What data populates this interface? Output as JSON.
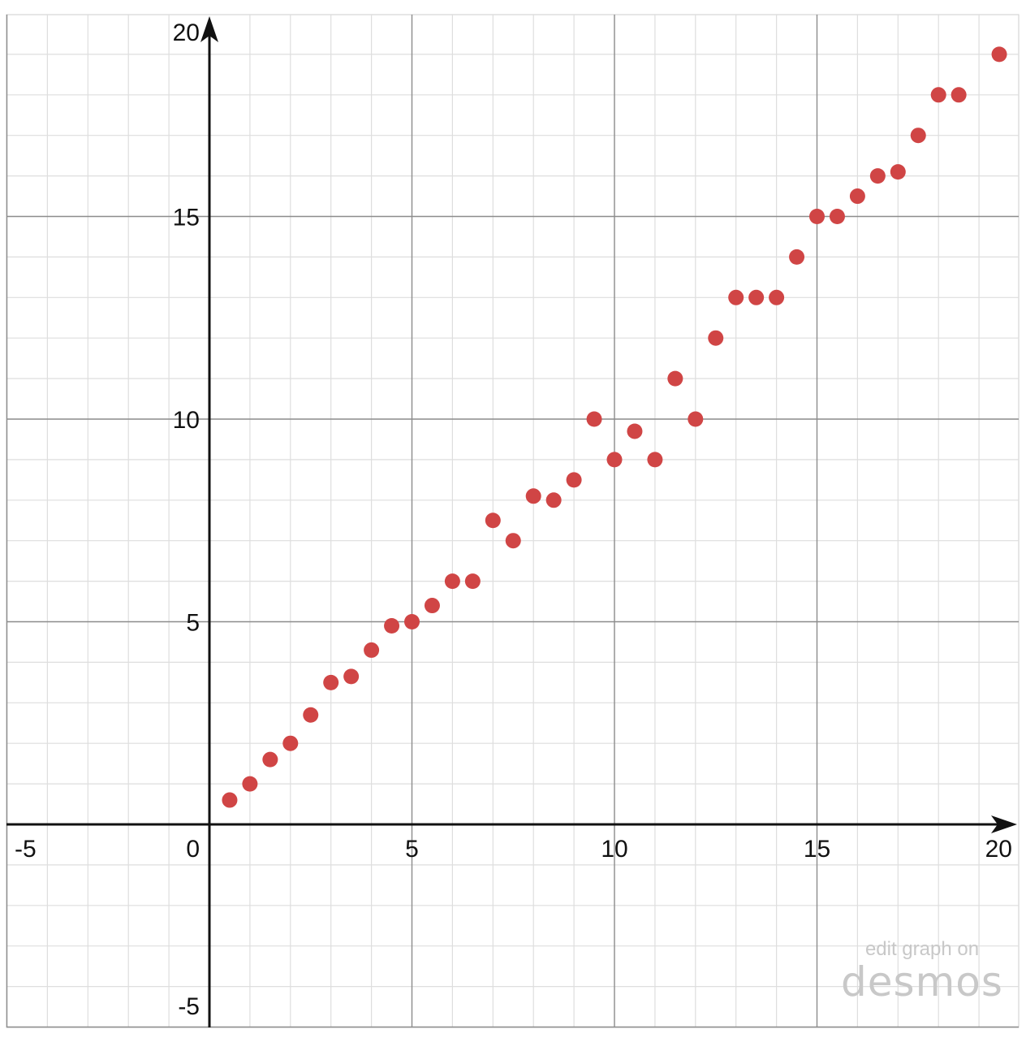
{
  "chart_data": {
    "type": "scatter",
    "title": "",
    "xlabel": "",
    "ylabel": "",
    "xlim": [
      -5,
      20
    ],
    "ylim": [
      -5,
      20
    ],
    "grid": true,
    "minor_step": 1,
    "major_step": 5,
    "point_color": "#d04545",
    "x_ticks": [
      -5,
      0,
      5,
      10,
      15,
      20
    ],
    "y_ticks": [
      -5,
      5,
      10,
      15,
      20
    ],
    "x_tick_labels": [
      "-5",
      "0",
      "5",
      "10",
      "15",
      "20"
    ],
    "y_tick_labels": [
      "-5",
      "5",
      "10",
      "15",
      "20"
    ],
    "points": [
      [
        0.5,
        0.6
      ],
      [
        1,
        1
      ],
      [
        1.5,
        1.6
      ],
      [
        2,
        2
      ],
      [
        2.5,
        2.7
      ],
      [
        3,
        3.5
      ],
      [
        3.5,
        3.65
      ],
      [
        4,
        4.3
      ],
      [
        4.5,
        4.9
      ],
      [
        5,
        5
      ],
      [
        5.5,
        5.4
      ],
      [
        6,
        6
      ],
      [
        6.5,
        6
      ],
      [
        7,
        7.5
      ],
      [
        7.5,
        7
      ],
      [
        8,
        8.1
      ],
      [
        8.5,
        8
      ],
      [
        9,
        8.5
      ],
      [
        9.5,
        10
      ],
      [
        10,
        9
      ],
      [
        10.5,
        9.7
      ],
      [
        11,
        9
      ],
      [
        11.5,
        11
      ],
      [
        12,
        10
      ],
      [
        12.5,
        12
      ],
      [
        13,
        13
      ],
      [
        13.5,
        13
      ],
      [
        14,
        13
      ],
      [
        14.5,
        14
      ],
      [
        15,
        15
      ],
      [
        15.5,
        15
      ],
      [
        16,
        15.5
      ],
      [
        16.5,
        16
      ],
      [
        17,
        16.1
      ],
      [
        17.5,
        17
      ],
      [
        18,
        18
      ],
      [
        18.5,
        18
      ],
      [
        19.5,
        19
      ]
    ]
  },
  "watermark": {
    "line1": "edit graph on",
    "line2": "desmos"
  }
}
